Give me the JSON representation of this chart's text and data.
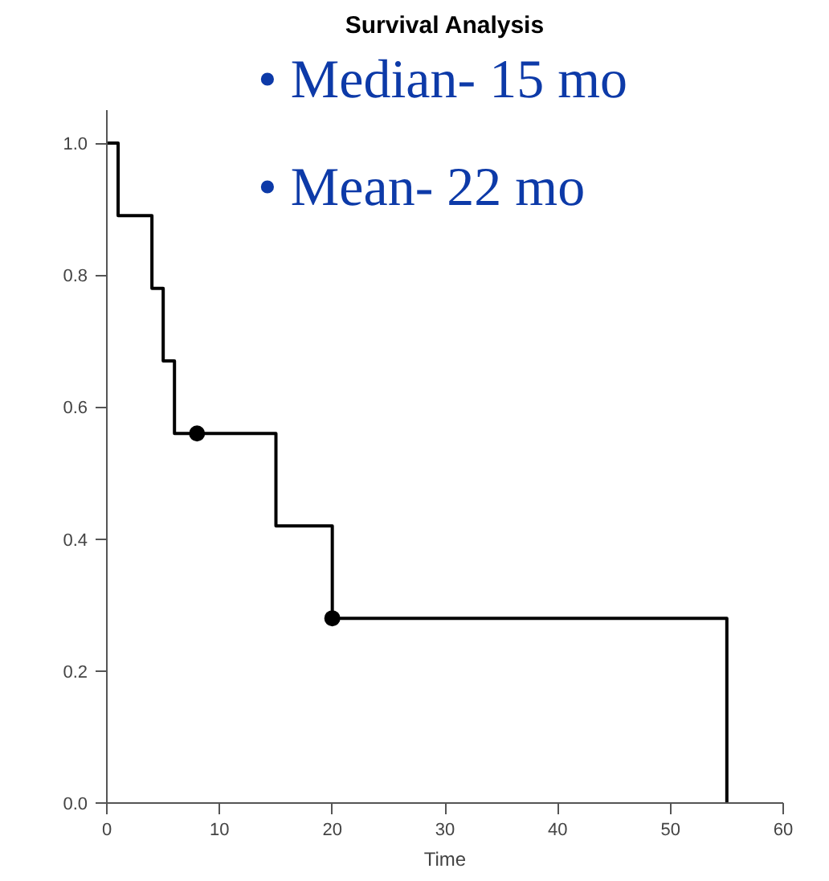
{
  "chart_data": {
    "type": "step",
    "title": "Survival Analysis",
    "xlabel": "Time",
    "annotations": [
      "•  Median- 15 mo",
      "•  Mean- 22 mo"
    ],
    "series": [
      {
        "color": "#000000",
        "x": [
          0,
          1,
          4,
          5,
          6,
          15,
          20,
          55
        ],
        "values": [
          1.0,
          0.89,
          0.78,
          0.67,
          0.56,
          0.42,
          0.28,
          0.0
        ],
        "marker": "none"
      },
      {
        "type": "scatter",
        "color": "#000000",
        "x": [
          8,
          20
        ],
        "values": [
          0.56,
          0.28
        ],
        "marker": "circle"
      }
    ],
    "xlim": [
      0,
      60
    ],
    "xticks": [
      0,
      10,
      20,
      30,
      40,
      50,
      60
    ],
    "ylim": [
      0,
      1.05
    ],
    "yticks": [
      {
        "value": 0,
        "label": "0.0"
      },
      {
        "value": 0.2,
        "label": "0.2"
      },
      {
        "value": 0.4,
        "label": "0.4"
      },
      {
        "value": 0.6,
        "label": "0.6"
      },
      {
        "value": 0.8,
        "label": "0.8"
      },
      {
        "value": 1,
        "label": "1.0"
      }
    ],
    "grid": false,
    "legend": false
  }
}
